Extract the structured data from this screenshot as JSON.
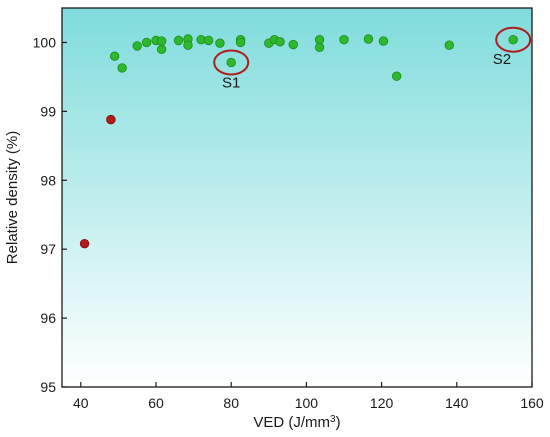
{
  "chart_data": {
    "type": "scatter",
    "title": "",
    "xlabel": "VED (J/mm³)",
    "xlabel_parts": {
      "base": "VED (J/mm",
      "sup": "3",
      "tail": ")"
    },
    "ylabel": "Relative density (%)",
    "xlim": [
      35,
      160
    ],
    "ylim": [
      95,
      100.5
    ],
    "x_ticks": [
      40,
      60,
      80,
      100,
      120,
      140,
      160
    ],
    "y_ticks": [
      95,
      96,
      97,
      98,
      99,
      100
    ],
    "grid": false,
    "background_gradient": [
      "#7fdcdc",
      "#ffffff"
    ],
    "series": [
      {
        "color": "#2db82d",
        "points": [
          {
            "x": 49,
            "y": 99.8
          },
          {
            "x": 51,
            "y": 99.63
          },
          {
            "x": 55,
            "y": 99.95
          },
          {
            "x": 57.5,
            "y": 100.0
          },
          {
            "x": 60,
            "y": 100.03
          },
          {
            "x": 61.5,
            "y": 100.02
          },
          {
            "x": 61.5,
            "y": 99.9
          },
          {
            "x": 66,
            "y": 100.03
          },
          {
            "x": 68.5,
            "y": 100.05
          },
          {
            "x": 68.5,
            "y": 99.96
          },
          {
            "x": 72,
            "y": 100.04
          },
          {
            "x": 74,
            "y": 100.03
          },
          {
            "x": 77,
            "y": 99.99
          },
          {
            "x": 80,
            "y": 99.71
          },
          {
            "x": 82.5,
            "y": 100.04
          },
          {
            "x": 82.5,
            "y": 100.0
          },
          {
            "x": 90,
            "y": 99.99
          },
          {
            "x": 91.5,
            "y": 100.04
          },
          {
            "x": 93,
            "y": 100.01
          },
          {
            "x": 96.5,
            "y": 99.97
          },
          {
            "x": 103.5,
            "y": 100.04
          },
          {
            "x": 103.5,
            "y": 99.93
          },
          {
            "x": 110,
            "y": 100.04
          },
          {
            "x": 116.5,
            "y": 100.05
          },
          {
            "x": 120.5,
            "y": 100.02
          },
          {
            "x": 124,
            "y": 99.51
          },
          {
            "x": 138,
            "y": 99.96
          },
          {
            "x": 155,
            "y": 100.04
          }
        ]
      },
      {
        "color": "#b31a1a",
        "points": [
          {
            "x": 41,
            "y": 97.08
          },
          {
            "x": 48,
            "y": 98.88
          }
        ]
      }
    ],
    "annotations": [
      {
        "label": "S1",
        "x": 80,
        "y": 99.71,
        "label_x": 80,
        "label_y": 99.42
      },
      {
        "label": "S2",
        "x": 155,
        "y": 100.04,
        "label_x": 152,
        "label_y": 99.76
      }
    ]
  }
}
